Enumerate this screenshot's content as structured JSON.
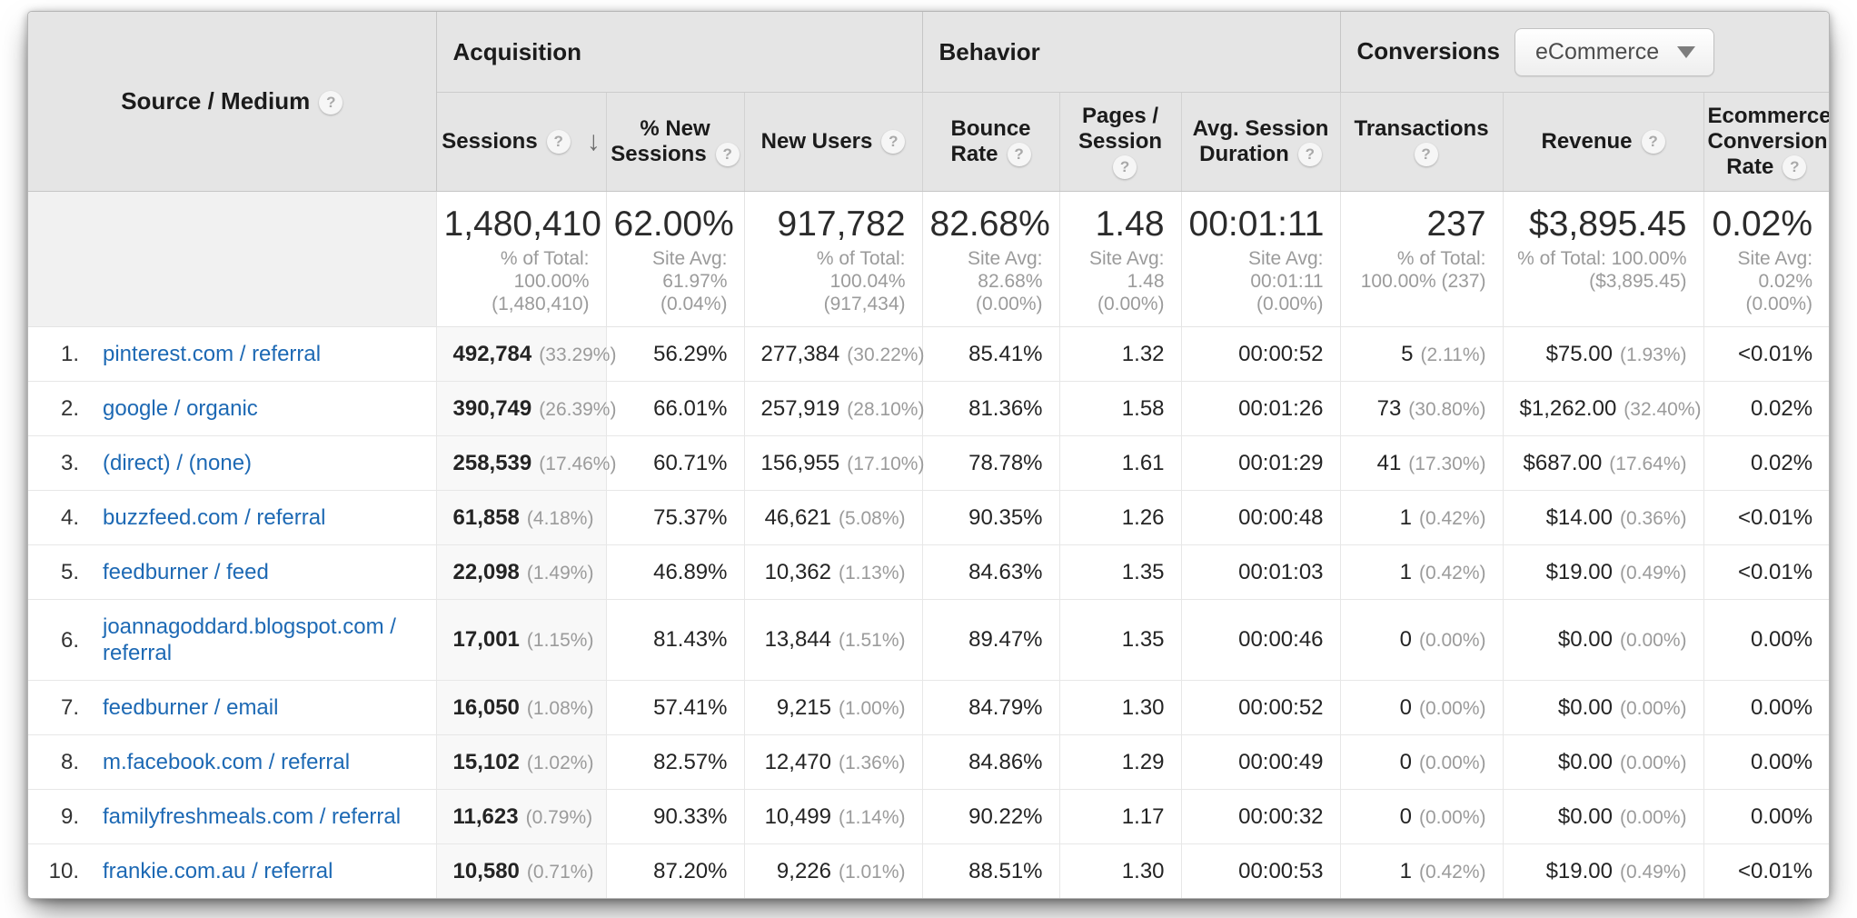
{
  "colors": {
    "link_blue": "#1d69b4",
    "header_bg": "#e5e5e5",
    "sorted_column_bg": "#f8f8f8"
  },
  "icons": {
    "help": "?",
    "sort_desc": "↓",
    "dropdown_arrow": "dropdown-triangle"
  },
  "header": {
    "dimension": "Source / Medium",
    "groups": {
      "acquisition": "Acquisition",
      "behavior": "Behavior",
      "conversions": "Conversions",
      "conversions_dropdown": "eCommerce"
    },
    "columns": {
      "sessions": "Sessions",
      "pct_new_sessions": "% New Sessions",
      "new_users": "New Users",
      "bounce_rate": "Bounce Rate",
      "pages_session": "Pages / Session",
      "avg_duration": "Avg. Session Duration",
      "transactions": "Transactions",
      "revenue": "Revenue",
      "ecommerce_rate": "Ecommerce Conversion Rate"
    }
  },
  "summary": {
    "sessions": "1,480,410",
    "sessions_note": "% of Total:\n100.00%\n(1,480,410)",
    "pct_new_sessions": "62.00%",
    "pct_new_sessions_note": "Site Avg:\n61.97%\n(0.04%)",
    "new_users": "917,782",
    "new_users_note": "% of Total:\n100.04% (917,434)",
    "bounce_rate": "82.68%",
    "bounce_rate_note": "Site Avg:\n82.68%\n(0.00%)",
    "pages_session": "1.48",
    "pages_session_note": "Site Avg:\n1.48\n(0.00%)",
    "avg_duration": "00:01:11",
    "avg_duration_note": "Site Avg:\n00:01:11\n(0.00%)",
    "transactions": "237",
    "transactions_note": "% of Total:\n100.00% (237)",
    "revenue": "$3,895.45",
    "revenue_note": "% of Total: 100.00%\n($3,895.45)",
    "ecommerce_rate": "0.02%",
    "ecommerce_rate_note": "Site Avg:\n0.02%\n(0.00%)"
  },
  "rows": [
    {
      "rank": "1.",
      "source": "pinterest.com / referral",
      "sessions": "492,784",
      "sessions_pct": "(33.29%)",
      "pct_new_sessions": "56.29%",
      "new_users": "277,384",
      "new_users_pct": "(30.22%)",
      "bounce_rate": "85.41%",
      "pages_session": "1.32",
      "avg_duration": "00:00:52",
      "transactions": "5",
      "transactions_pct": "(2.11%)",
      "revenue": "$75.00",
      "revenue_pct": "(1.93%)",
      "ecommerce_rate": "<0.01%"
    },
    {
      "rank": "2.",
      "source": "google / organic",
      "sessions": "390,749",
      "sessions_pct": "(26.39%)",
      "pct_new_sessions": "66.01%",
      "new_users": "257,919",
      "new_users_pct": "(28.10%)",
      "bounce_rate": "81.36%",
      "pages_session": "1.58",
      "avg_duration": "00:01:26",
      "transactions": "73",
      "transactions_pct": "(30.80%)",
      "revenue": "$1,262.00",
      "revenue_pct": "(32.40%)",
      "ecommerce_rate": "0.02%"
    },
    {
      "rank": "3.",
      "source": "(direct) / (none)",
      "sessions": "258,539",
      "sessions_pct": "(17.46%)",
      "pct_new_sessions": "60.71%",
      "new_users": "156,955",
      "new_users_pct": "(17.10%)",
      "bounce_rate": "78.78%",
      "pages_session": "1.61",
      "avg_duration": "00:01:29",
      "transactions": "41",
      "transactions_pct": "(17.30%)",
      "revenue": "$687.00",
      "revenue_pct": "(17.64%)",
      "ecommerce_rate": "0.02%"
    },
    {
      "rank": "4.",
      "source": "buzzfeed.com / referral",
      "sessions": "61,858",
      "sessions_pct": "(4.18%)",
      "pct_new_sessions": "75.37%",
      "new_users": "46,621",
      "new_users_pct": "(5.08%)",
      "bounce_rate": "90.35%",
      "pages_session": "1.26",
      "avg_duration": "00:00:48",
      "transactions": "1",
      "transactions_pct": "(0.42%)",
      "revenue": "$14.00",
      "revenue_pct": "(0.36%)",
      "ecommerce_rate": "<0.01%"
    },
    {
      "rank": "5.",
      "source": "feedburner / feed",
      "sessions": "22,098",
      "sessions_pct": "(1.49%)",
      "pct_new_sessions": "46.89%",
      "new_users": "10,362",
      "new_users_pct": "(1.13%)",
      "bounce_rate": "84.63%",
      "pages_session": "1.35",
      "avg_duration": "00:01:03",
      "transactions": "1",
      "transactions_pct": "(0.42%)",
      "revenue": "$19.00",
      "revenue_pct": "(0.49%)",
      "ecommerce_rate": "<0.01%"
    },
    {
      "rank": "6.",
      "source": "joannagoddard.blogspot.com / referral",
      "sessions": "17,001",
      "sessions_pct": "(1.15%)",
      "pct_new_sessions": "81.43%",
      "new_users": "13,844",
      "new_users_pct": "(1.51%)",
      "bounce_rate": "89.47%",
      "pages_session": "1.35",
      "avg_duration": "00:00:46",
      "transactions": "0",
      "transactions_pct": "(0.00%)",
      "revenue": "$0.00",
      "revenue_pct": "(0.00%)",
      "ecommerce_rate": "0.00%"
    },
    {
      "rank": "7.",
      "source": "feedburner / email",
      "sessions": "16,050",
      "sessions_pct": "(1.08%)",
      "pct_new_sessions": "57.41%",
      "new_users": "9,215",
      "new_users_pct": "(1.00%)",
      "bounce_rate": "84.79%",
      "pages_session": "1.30",
      "avg_duration": "00:00:52",
      "transactions": "0",
      "transactions_pct": "(0.00%)",
      "revenue": "$0.00",
      "revenue_pct": "(0.00%)",
      "ecommerce_rate": "0.00%"
    },
    {
      "rank": "8.",
      "source": "m.facebook.com / referral",
      "sessions": "15,102",
      "sessions_pct": "(1.02%)",
      "pct_new_sessions": "82.57%",
      "new_users": "12,470",
      "new_users_pct": "(1.36%)",
      "bounce_rate": "84.86%",
      "pages_session": "1.29",
      "avg_duration": "00:00:49",
      "transactions": "0",
      "transactions_pct": "(0.00%)",
      "revenue": "$0.00",
      "revenue_pct": "(0.00%)",
      "ecommerce_rate": "0.00%"
    },
    {
      "rank": "9.",
      "source": "familyfreshmeals.com / referral",
      "sessions": "11,623",
      "sessions_pct": "(0.79%)",
      "pct_new_sessions": "90.33%",
      "new_users": "10,499",
      "new_users_pct": "(1.14%)",
      "bounce_rate": "90.22%",
      "pages_session": "1.17",
      "avg_duration": "00:00:32",
      "transactions": "0",
      "transactions_pct": "(0.00%)",
      "revenue": "$0.00",
      "revenue_pct": "(0.00%)",
      "ecommerce_rate": "0.00%"
    },
    {
      "rank": "10.",
      "source": "frankie.com.au / referral",
      "sessions": "10,580",
      "sessions_pct": "(0.71%)",
      "pct_new_sessions": "87.20%",
      "new_users": "9,226",
      "new_users_pct": "(1.01%)",
      "bounce_rate": "88.51%",
      "pages_session": "1.30",
      "avg_duration": "00:00:53",
      "transactions": "1",
      "transactions_pct": "(0.42%)",
      "revenue": "$19.00",
      "revenue_pct": "(0.49%)",
      "ecommerce_rate": "<0.01%"
    }
  ]
}
